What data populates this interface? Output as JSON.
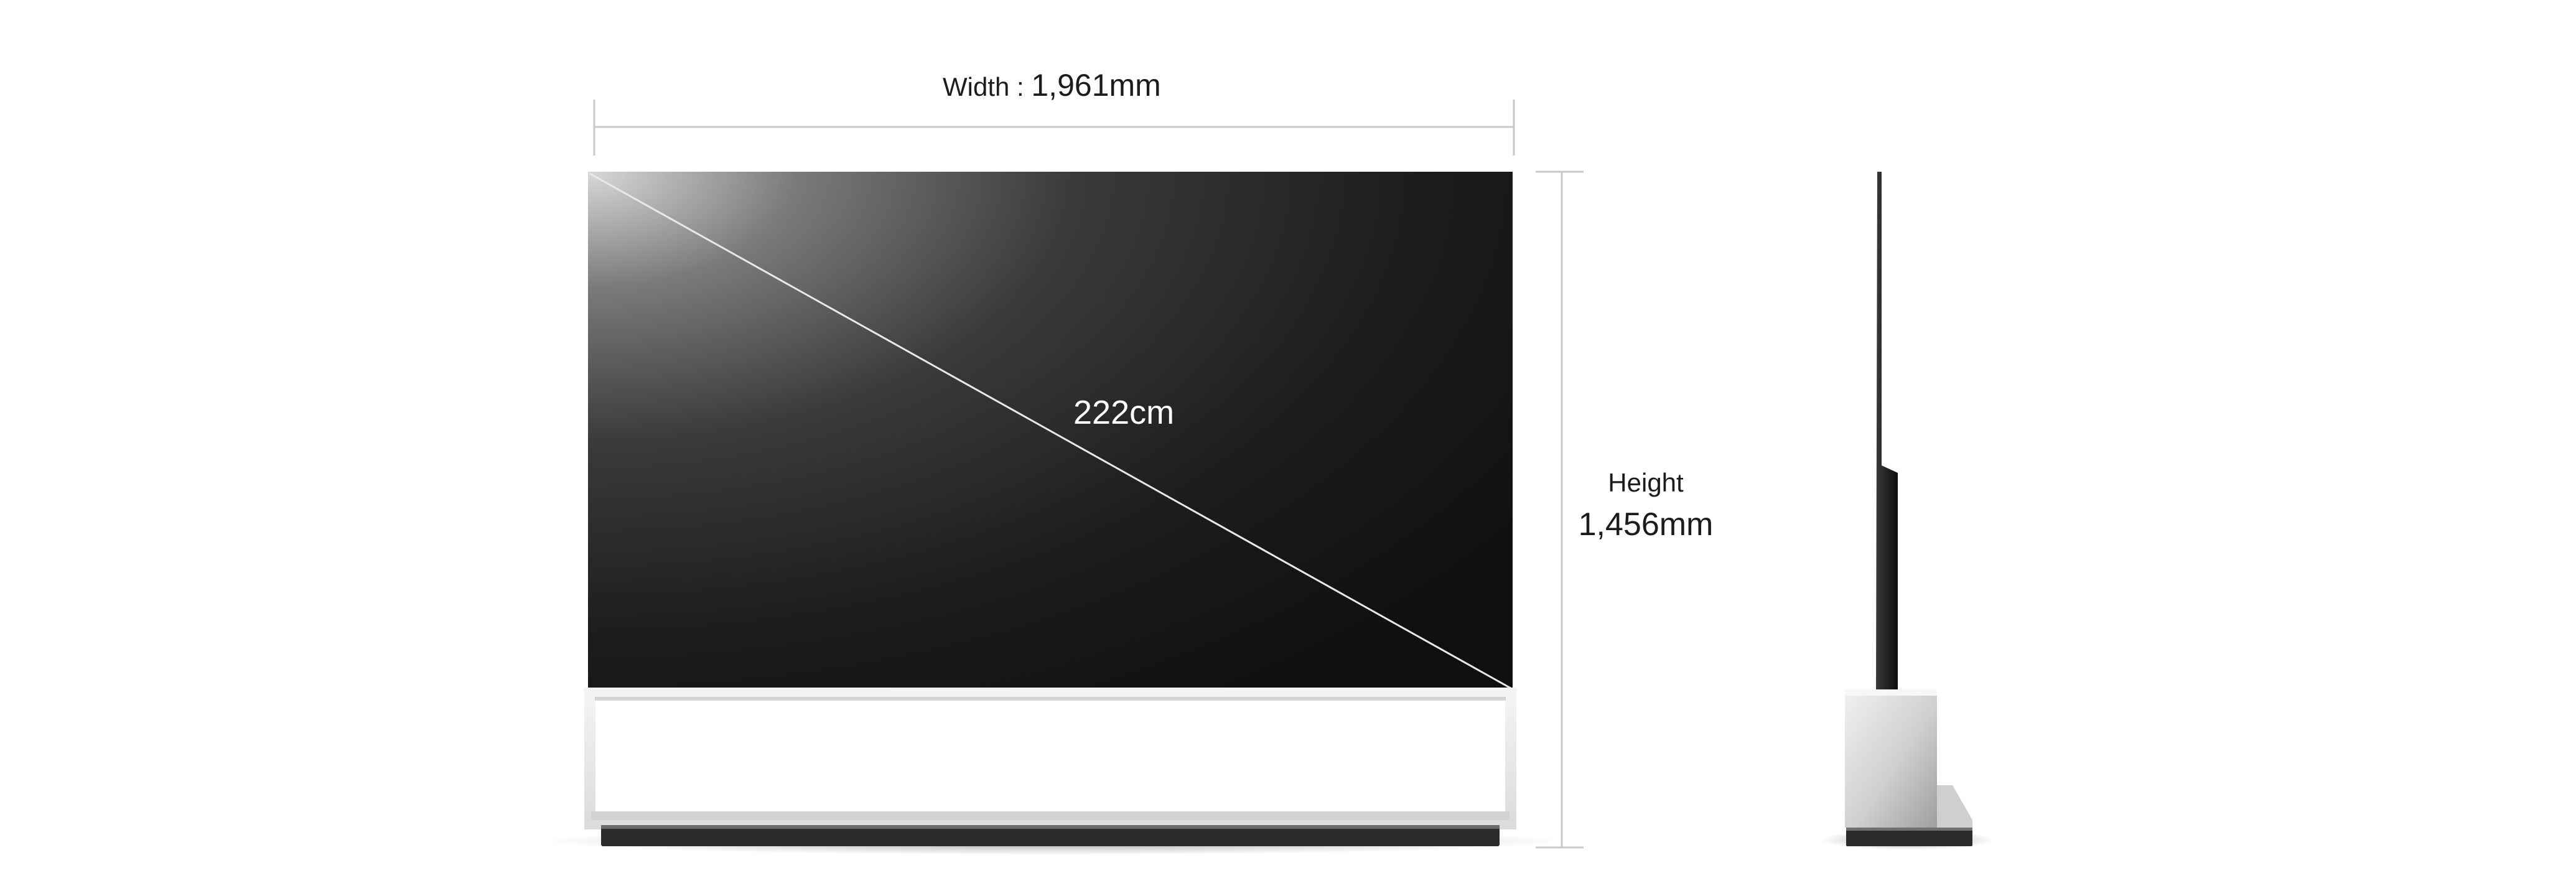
{
  "dimensions": {
    "width": {
      "caption": "Width",
      "separator": " : ",
      "value": "1,961mm"
    },
    "height": {
      "caption": "Height",
      "value": "1,456mm"
    },
    "diagonal": {
      "value": "222cm"
    }
  },
  "colors": {
    "background": "#ffffff",
    "screen_dark": "#111111",
    "screen_highlight": "#d9d9d9",
    "dimension_line": "#c8c8c8",
    "stand_frame": "#ececec",
    "base_shadow": "#2a2a2a"
  }
}
